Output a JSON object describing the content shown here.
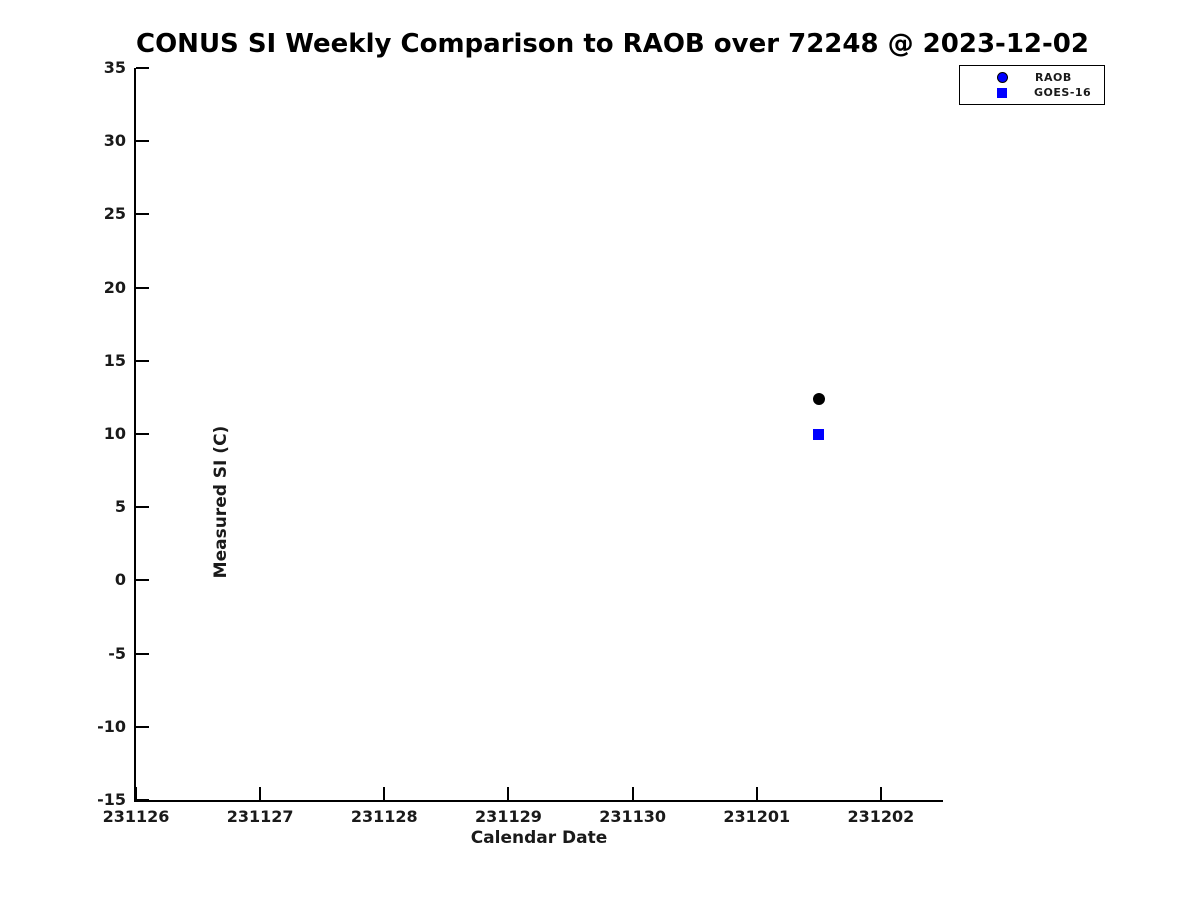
{
  "chart_data": {
    "type": "scatter",
    "title": "CONUS SI Weekly Comparison to RAOB over 72248 @ 2023-12-02",
    "xlabel": "Calendar Date",
    "ylabel": "Measured SI (C)",
    "x_tick_labels": [
      "231126",
      "231127",
      "231128",
      "231129",
      "231130",
      "231201",
      "231202"
    ],
    "xlim_days": [
      0,
      6.5
    ],
    "ylim": [
      -15,
      35
    ],
    "y_tick_step": 5,
    "grid": false,
    "legend_position": "top-right",
    "series": [
      {
        "name": "RAOB",
        "marker": "circle",
        "point_color": "#000000",
        "legend_face_color": "#0000ff",
        "legend_edge_color": "#000000",
        "points": [
          {
            "x_day": 5.5,
            "x_date_code": 231201.5,
            "y": 12.4
          }
        ]
      },
      {
        "name": "GOES-16",
        "marker": "square",
        "point_color": "#0000ff",
        "legend_face_color": "#0000ff",
        "legend_edge_color": "#0000ff",
        "points": [
          {
            "x_day": 5.5,
            "x_date_code": 231201.5,
            "y": 10.0
          }
        ]
      }
    ],
    "colors": {
      "axis": "#000000",
      "text": "#1a1a1a",
      "background": "#ffffff",
      "series_blue": "#0000ff",
      "series_black": "#000000"
    }
  }
}
